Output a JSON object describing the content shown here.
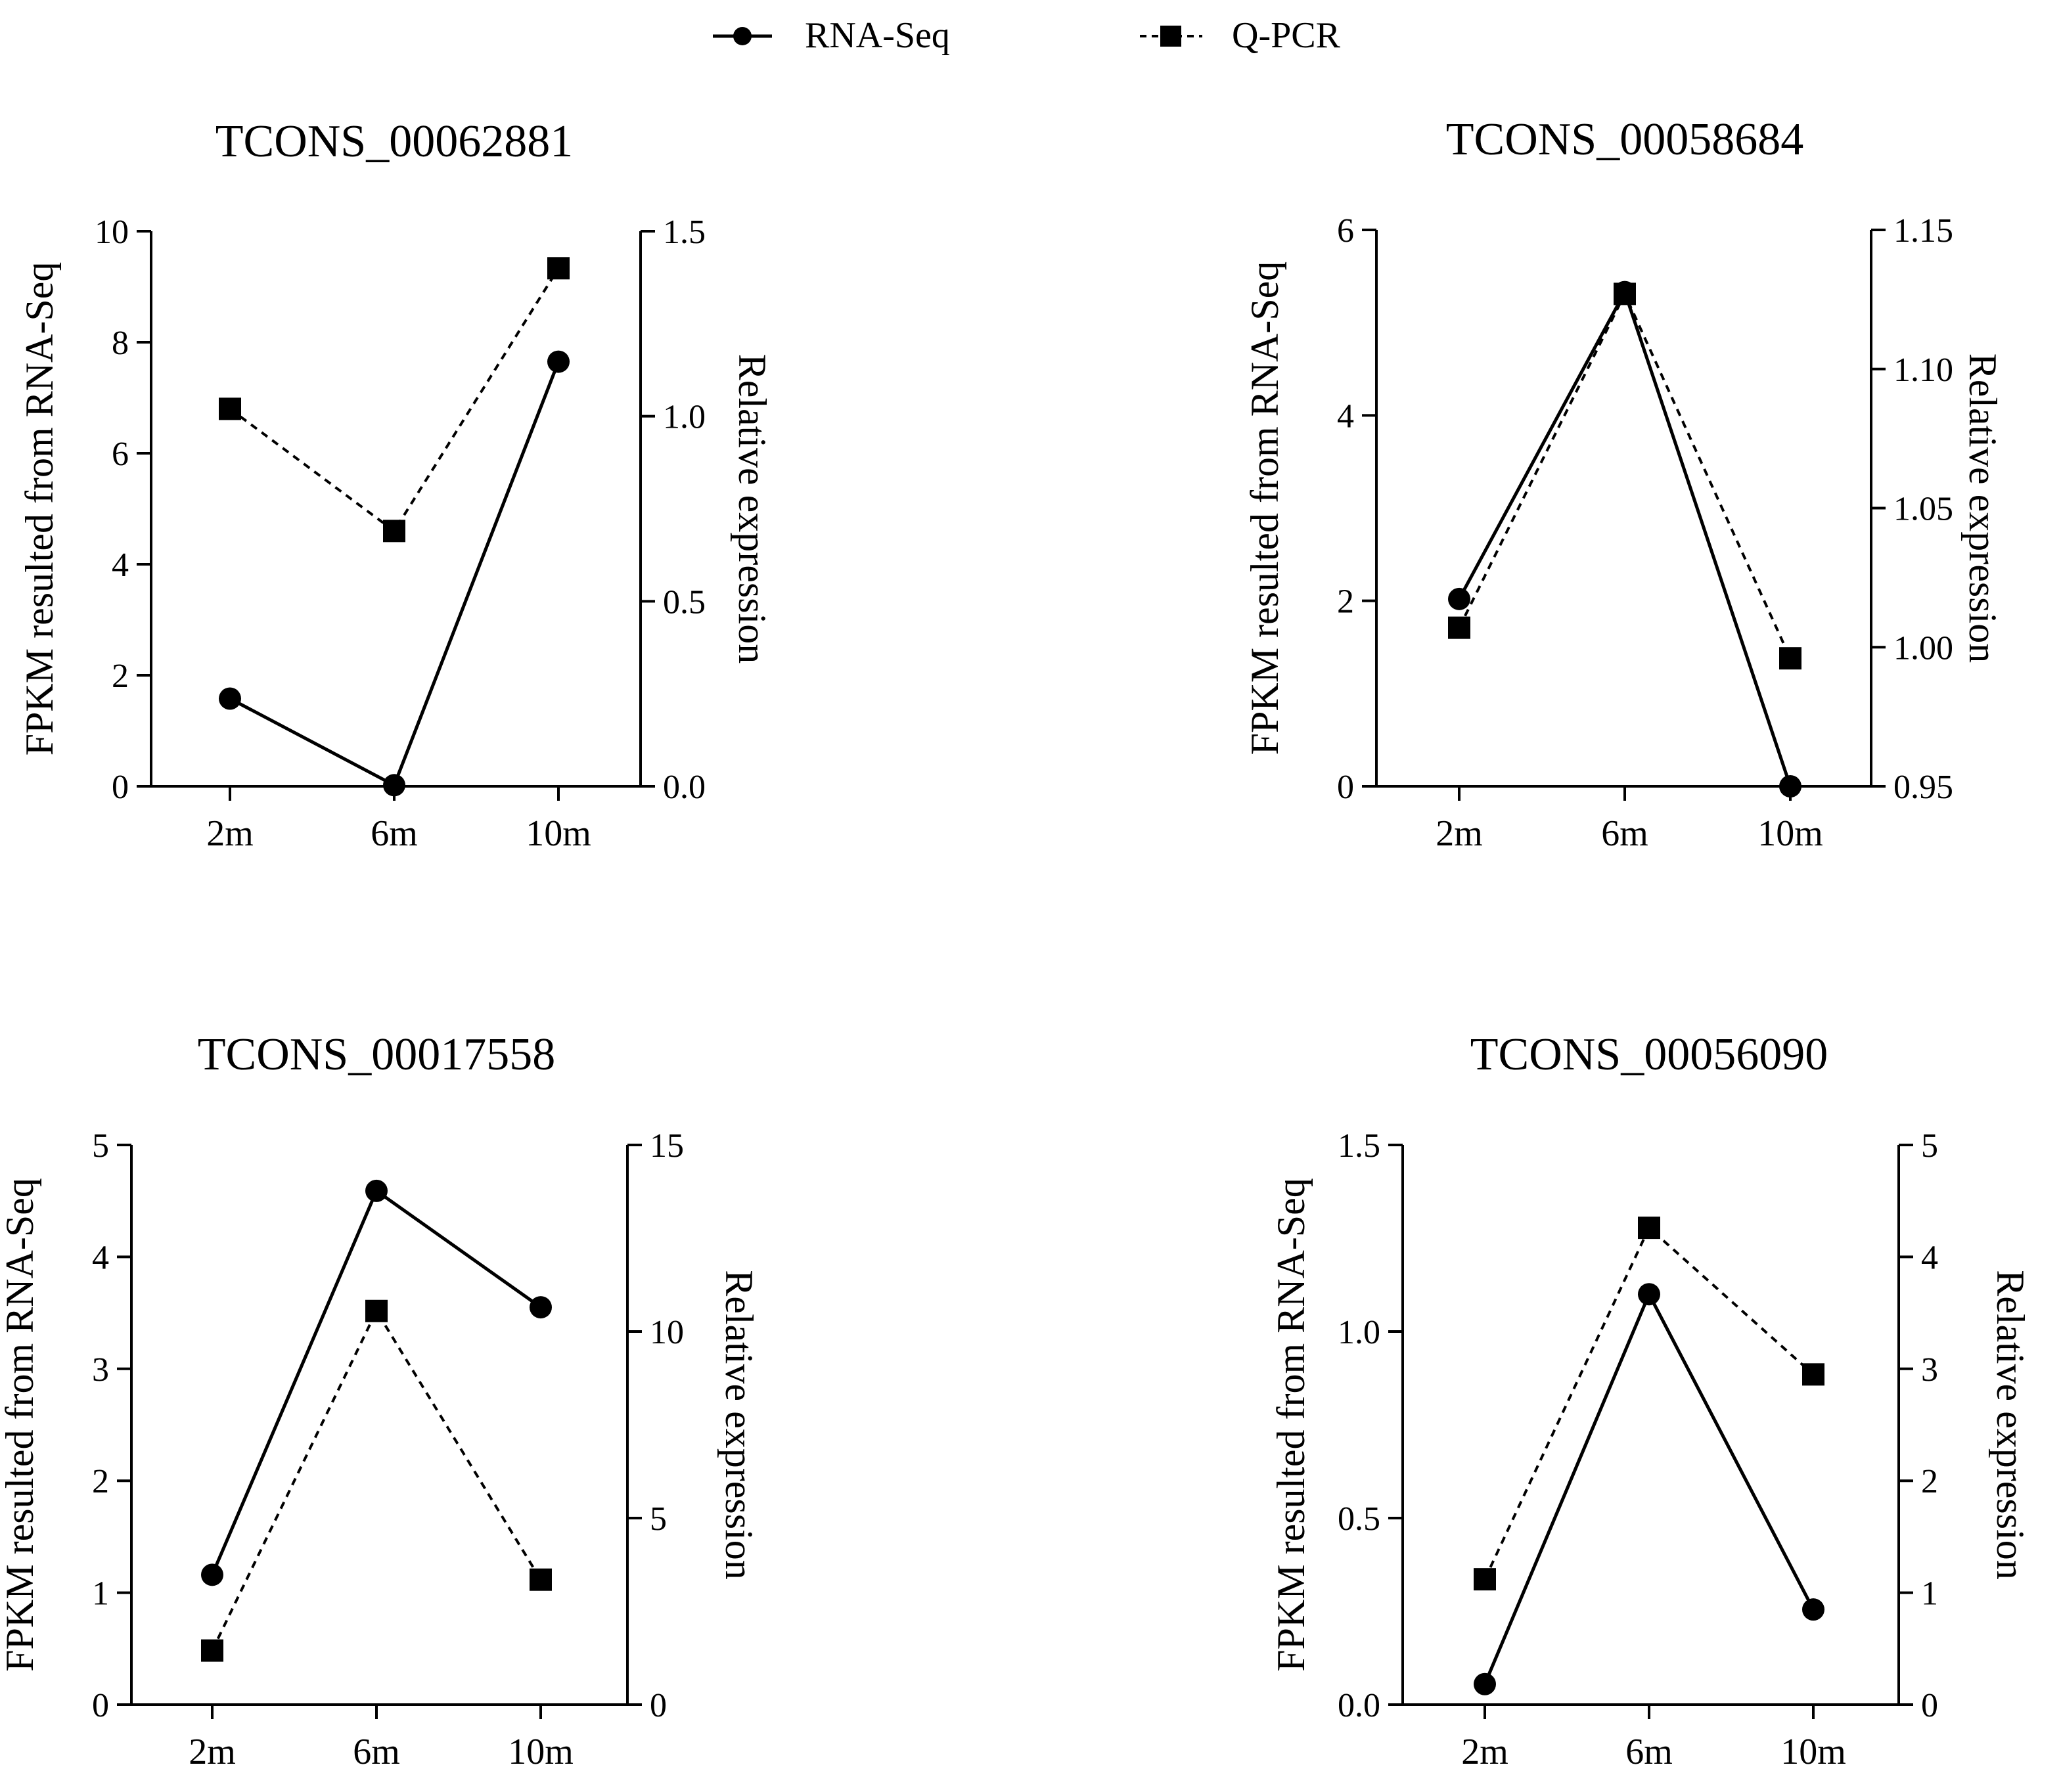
{
  "legend": {
    "entries": [
      {
        "label": "RNA-Seq",
        "marker": "circle",
        "line": "solid"
      },
      {
        "label": "Q-PCR",
        "marker": "square",
        "line": "dashed"
      }
    ]
  },
  "chart_data": [
    {
      "type": "line",
      "title": "TCONS_00062881",
      "categories": [
        "2m",
        "6m",
        "10m"
      ],
      "ylabel_left": "FPKM resulted from RNA-Seq",
      "ylabel_right": "Relative expression",
      "left_axis": {
        "min": 0,
        "max": 10,
        "ticks": [
          0,
          2,
          4,
          6,
          8,
          10
        ],
        "tick_labels": [
          "0",
          "2",
          "4",
          "6",
          "8",
          "10"
        ]
      },
      "right_axis": {
        "min": 0,
        "max": 1.5,
        "ticks": [
          0,
          0.5,
          1.0,
          1.5
        ],
        "tick_labels": [
          "0.0",
          "0.5",
          "1.0",
          "1.5"
        ]
      },
      "series": [
        {
          "name": "RNA-Seq",
          "axis": "left",
          "values": [
            1.58,
            0.02,
            7.65
          ]
        },
        {
          "name": "Q-PCR",
          "axis": "right",
          "values": [
            1.02,
            0.69,
            1.4
          ]
        }
      ]
    },
    {
      "type": "line",
      "title": "TCONS_00058684",
      "categories": [
        "2m",
        "6m",
        "10m"
      ],
      "ylabel_left": "FPKM resulted from RNA-Seq",
      "ylabel_right": "Relative expression",
      "left_axis": {
        "min": 0,
        "max": 6,
        "ticks": [
          0,
          2,
          4,
          6
        ],
        "tick_labels": [
          "0",
          "2",
          "4",
          "6"
        ]
      },
      "right_axis": {
        "min": 0.95,
        "max": 1.15,
        "ticks": [
          0.95,
          1.0,
          1.05,
          1.1,
          1.15
        ],
        "tick_labels": [
          "0.95",
          "1.00",
          "1.05",
          "1.10",
          "1.15"
        ]
      },
      "series": [
        {
          "name": "RNA-Seq",
          "axis": "left",
          "values": [
            2.02,
            5.33,
            0.0
          ]
        },
        {
          "name": "Q-PCR",
          "axis": "right",
          "values": [
            1.007,
            1.127,
            0.996
          ]
        }
      ]
    },
    {
      "type": "line",
      "title": "TCONS_00017558",
      "categories": [
        "2m",
        "6m",
        "10m"
      ],
      "ylabel_left": "FPKM resulted from RNA-Seq",
      "ylabel_right": "Relative expression",
      "left_axis": {
        "min": 0,
        "max": 5,
        "ticks": [
          0,
          1,
          2,
          3,
          4,
          5
        ],
        "tick_labels": [
          "0",
          "1",
          "2",
          "3",
          "4",
          "5"
        ]
      },
      "right_axis": {
        "min": 0,
        "max": 15,
        "ticks": [
          0,
          5,
          10,
          15
        ],
        "tick_labels": [
          "0",
          "5",
          "10",
          "15"
        ]
      },
      "series": [
        {
          "name": "RNA-Seq",
          "axis": "left",
          "values": [
            1.16,
            4.59,
            3.55
          ]
        },
        {
          "name": "Q-PCR",
          "axis": "right",
          "values": [
            1.45,
            10.55,
            3.35
          ]
        }
      ]
    },
    {
      "type": "line",
      "title": "TCONS_00056090",
      "categories": [
        "2m",
        "6m",
        "10m"
      ],
      "ylabel_left": "FPKM resulted from RNA-Seq",
      "ylabel_right": "Relative expression",
      "left_axis": {
        "min": 0,
        "max": 1.5,
        "ticks": [
          0,
          0.5,
          1.0,
          1.5
        ],
        "tick_labels": [
          "0.0",
          "0.5",
          "1.0",
          "1.5"
        ]
      },
      "right_axis": {
        "min": 0,
        "max": 5,
        "ticks": [
          0,
          1,
          2,
          3,
          4,
          5
        ],
        "tick_labels": [
          "0",
          "1",
          "2",
          "3",
          "4",
          "5"
        ]
      },
      "series": [
        {
          "name": "RNA-Seq",
          "axis": "left",
          "values": [
            0.055,
            1.1,
            0.255
          ]
        },
        {
          "name": "Q-PCR",
          "axis": "right",
          "values": [
            1.12,
            4.26,
            2.95
          ]
        }
      ]
    }
  ]
}
